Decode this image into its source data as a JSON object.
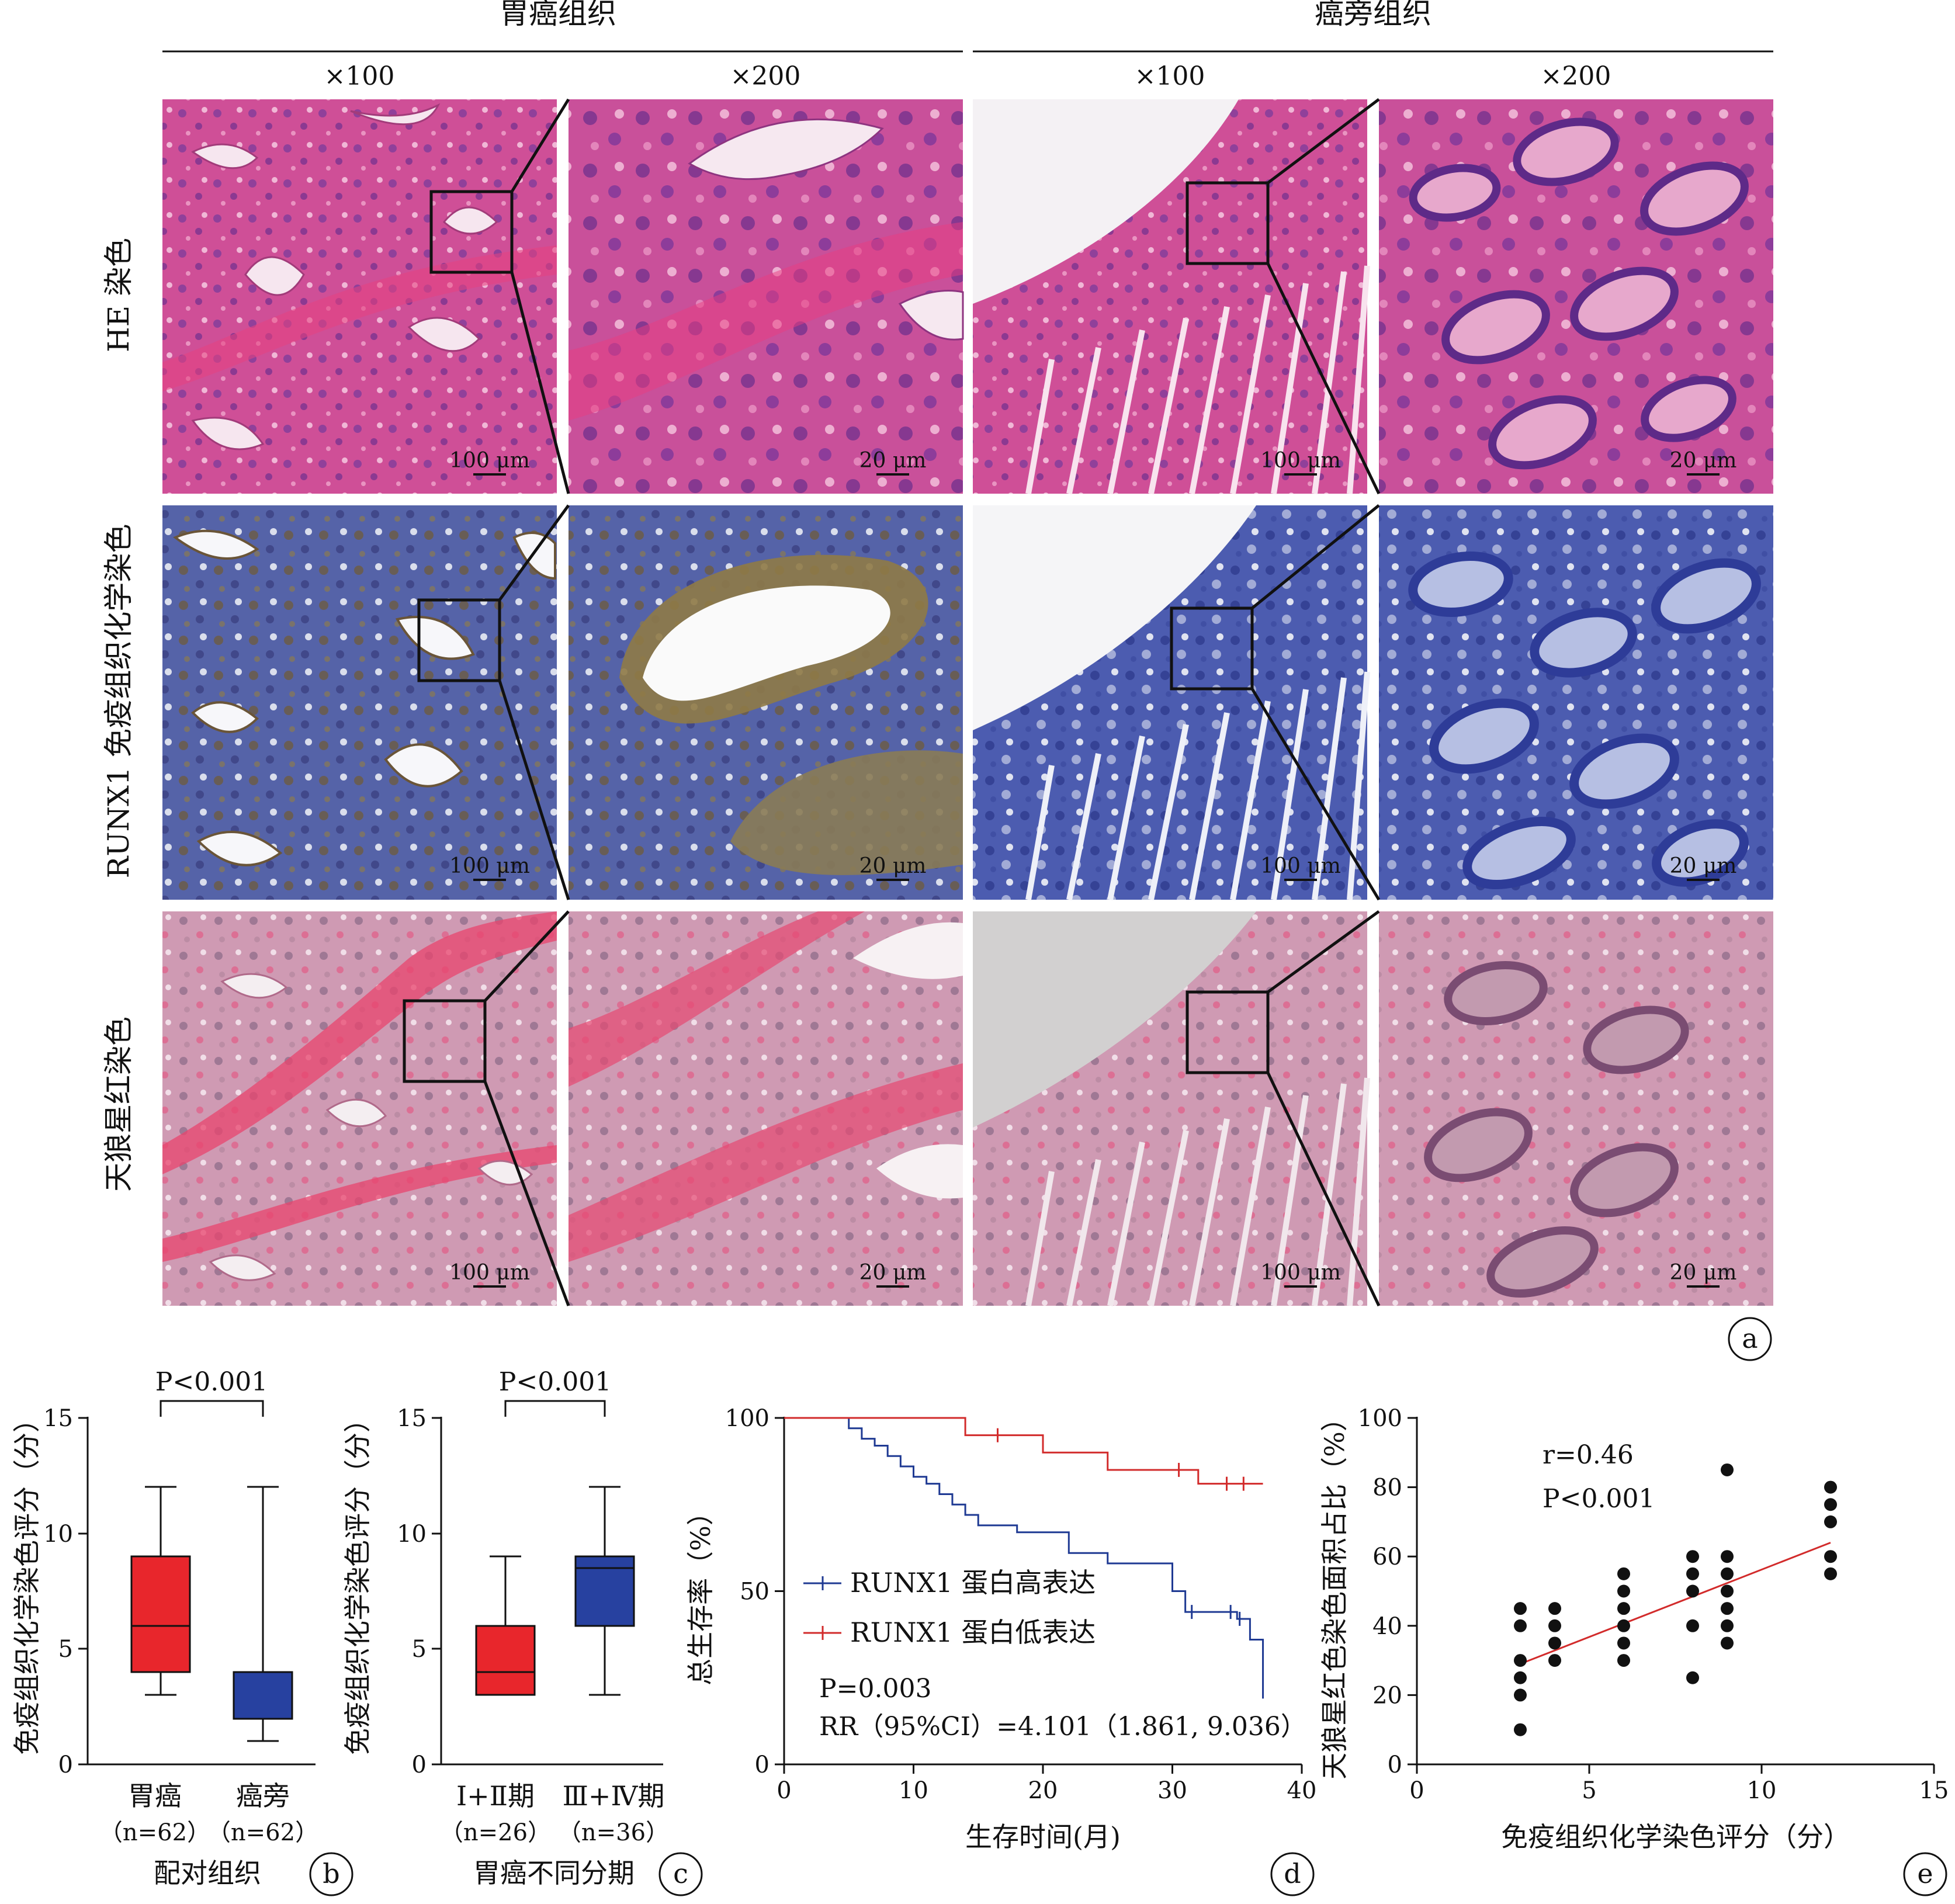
{
  "panel_a": {
    "groups": [
      "胃癌组织",
      "癌旁组织"
    ],
    "magnifications": [
      "×100",
      "×200",
      "×100",
      "×200"
    ],
    "row_labels": [
      "HE 染色",
      "RUNX1 免疫组织化学染色",
      "天狼星红染色"
    ],
    "scale_bars": [
      "100 μm",
      "20 μm"
    ],
    "letter": "a",
    "stain_colors": {
      "he": "#cf4f97",
      "ihc": "#4e5ea6",
      "sirius": "#d691ad"
    }
  },
  "chart_data": [
    {
      "type": "box",
      "panel": "b",
      "ylabel": "免疫组织化学染色评分（分）",
      "ylim": [
        0,
        15
      ],
      "yticks": [
        0,
        5,
        10,
        15
      ],
      "categories": [
        "胃癌",
        "癌旁"
      ],
      "sample_sizes": [
        "（n=62）",
        "（n=62）"
      ],
      "group_label": "配对组织",
      "annotation": "P<0.001",
      "boxes": [
        {
          "min": 3,
          "q1": 4,
          "median": 6,
          "q3": 9,
          "max": 12,
          "color": "#e8262c"
        },
        {
          "min": 1,
          "q1": 2,
          "median": 4,
          "q3": 4,
          "max": 12,
          "color": "#2741a0"
        }
      ]
    },
    {
      "type": "box",
      "panel": "c",
      "ylabel": "免疫组织化学染色评分（分）",
      "ylim": [
        0,
        15
      ],
      "yticks": [
        0,
        5,
        10,
        15
      ],
      "categories": [
        "Ⅰ+Ⅱ期",
        "Ⅲ+Ⅳ期"
      ],
      "sample_sizes": [
        "（n=26）",
        "（n=36）"
      ],
      "group_label": "胃癌不同分期",
      "annotation": "P<0.001",
      "boxes": [
        {
          "min": 3,
          "q1": 3,
          "median": 4,
          "q3": 6,
          "max": 9,
          "color": "#e8262c"
        },
        {
          "min": 3,
          "q1": 6,
          "median": 8.5,
          "q3": 9,
          "max": 12,
          "color": "#2741a0"
        }
      ]
    },
    {
      "type": "line",
      "panel": "d",
      "xlabel": "生存时间(月)",
      "ylabel": "总生存率（%）",
      "xlim": [
        0,
        40
      ],
      "ylim": [
        0,
        100
      ],
      "xticks": [
        0,
        10,
        20,
        30,
        40
      ],
      "yticks": [
        0,
        50,
        100
      ],
      "series": [
        {
          "name": "RUNX1 蛋白高表达",
          "color": "#1f3a93",
          "x": [
            0,
            5,
            6,
            7,
            8,
            9,
            10,
            11,
            12,
            13,
            14,
            15,
            18,
            22,
            25,
            28,
            30,
            31,
            35,
            36,
            37
          ],
          "y": [
            100,
            97,
            94,
            92,
            89,
            86,
            83,
            81,
            78,
            75,
            72,
            69,
            67,
            61,
            58,
            58,
            50,
            44,
            42,
            36,
            19
          ],
          "censored_x": [
            31.5,
            34.5,
            35.2
          ]
        },
        {
          "name": "RUNX1 蛋白低表达",
          "color": "#d22b2b",
          "x": [
            0,
            14,
            20,
            25,
            32,
            37
          ],
          "y": [
            100,
            95,
            90,
            85,
            81,
            81
          ],
          "censored_x": [
            16.5,
            30.5,
            34.2,
            35.5
          ]
        }
      ],
      "annotations": [
        "P=0.003",
        "RR（95%CI）=4.101（1.861, 9.036）"
      ]
    },
    {
      "type": "scatter",
      "panel": "e",
      "xlabel": "免疫组织化学染色评分（分）",
      "ylabel": "天狼星红色染色面积占比（%）",
      "xlim": [
        0,
        15
      ],
      "ylim": [
        0,
        100
      ],
      "xticks": [
        0,
        5,
        10,
        15
      ],
      "yticks": [
        0,
        20,
        40,
        60,
        80,
        100
      ],
      "points": [
        [
          3,
          10
        ],
        [
          3,
          20
        ],
        [
          3,
          25
        ],
        [
          3,
          30
        ],
        [
          3,
          40
        ],
        [
          3,
          45
        ],
        [
          4,
          30
        ],
        [
          4,
          35
        ],
        [
          4,
          40
        ],
        [
          4,
          45
        ],
        [
          6,
          30
        ],
        [
          6,
          35
        ],
        [
          6,
          40
        ],
        [
          6,
          45
        ],
        [
          6,
          50
        ],
        [
          6,
          55
        ],
        [
          8,
          25
        ],
        [
          8,
          40
        ],
        [
          8,
          50
        ],
        [
          8,
          55
        ],
        [
          8,
          60
        ],
        [
          9,
          35
        ],
        [
          9,
          40
        ],
        [
          9,
          45
        ],
        [
          9,
          50
        ],
        [
          9,
          55
        ],
        [
          9,
          60
        ],
        [
          9,
          85
        ],
        [
          12,
          55
        ],
        [
          12,
          60
        ],
        [
          12,
          70
        ],
        [
          12,
          75
        ],
        [
          12,
          80
        ]
      ],
      "fit_line": [
        [
          3,
          29
        ],
        [
          12,
          64
        ]
      ],
      "fit_color": "#d22b2b",
      "annotations": [
        "r=0.46",
        "P<0.001"
      ]
    }
  ],
  "panel_letters": {
    "b": "b",
    "c": "c",
    "d": "d",
    "e": "e"
  }
}
